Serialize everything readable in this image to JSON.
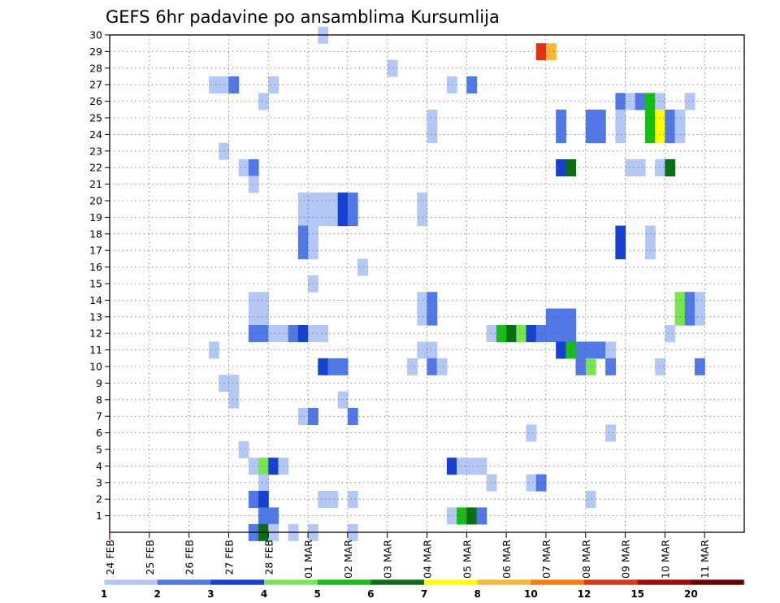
{
  "chart_data": {
    "type": "heatmap",
    "title": "GEFS 6hr padavine po ansamblima Kursumlija",
    "xlabel": "",
    "ylabel": "",
    "x_tick_labels": [
      "24 FEB",
      "25 FEB",
      "26 FEB",
      "27 FEB",
      "28 FEB",
      "01 MAR",
      "02 MAR",
      "03 MAR",
      "04 MAR",
      "05 MAR",
      "06 MAR",
      "07 MAR",
      "08 MAR",
      "09 MAR",
      "10 MAR",
      "11 MAR"
    ],
    "y_tick_labels": [
      "1",
      "2",
      "3",
      "4",
      "5",
      "6",
      "7",
      "8",
      "9",
      "10",
      "11",
      "12",
      "13",
      "14",
      "15",
      "16",
      "17",
      "18",
      "19",
      "20",
      "21",
      "22",
      "23",
      "24",
      "25",
      "26",
      "27",
      "28",
      "29",
      "30"
    ],
    "x_range_days": [
      0,
      16
    ],
    "y_range": [
      0,
      30
    ],
    "time_step_hours": 6,
    "grid": "dotted",
    "colorbar": {
      "labels": [
        "1",
        "2",
        "3",
        "4",
        "5",
        "6",
        "7",
        "8",
        "10",
        "12",
        "15",
        "20"
      ],
      "colors": [
        "#b4c8f5",
        "#5078e6",
        "#1441d2",
        "#78e650",
        "#14be14",
        "#0a6e14",
        "#ffff00",
        "#ffb432",
        "#ff780a",
        "#e13214",
        "#a00a0a",
        "#690000"
      ]
    },
    "cells": [
      {
        "member": 30,
        "day": "01 MAR",
        "hour": "06Z",
        "level": 1
      },
      {
        "member": 29,
        "day": "06 MAR",
        "hour": "18Z",
        "level": 10
      },
      {
        "member": 29,
        "day": "07 MAR",
        "hour": "00Z",
        "level": 8
      },
      {
        "member": 28,
        "day": "03 MAR",
        "hour": "00Z",
        "level": 1
      },
      {
        "member": 27,
        "day": "26 FEB",
        "hour": "12Z",
        "level": 1
      },
      {
        "member": 27,
        "day": "26 FEB",
        "hour": "18Z",
        "level": 1
      },
      {
        "member": 27,
        "day": "27 FEB",
        "hour": "00Z",
        "level": 2
      },
      {
        "member": 27,
        "day": "28 FEB",
        "hour": "00Z",
        "level": 1
      },
      {
        "member": 27,
        "day": "04 MAR",
        "hour": "12Z",
        "level": 1
      },
      {
        "member": 27,
        "day": "05 MAR",
        "hour": "00Z",
        "level": 2
      },
      {
        "member": 26,
        "day": "27 FEB",
        "hour": "18Z",
        "level": 1
      },
      {
        "member": 26,
        "day": "08 MAR",
        "hour": "18Z",
        "level": 2
      },
      {
        "member": 26,
        "day": "09 MAR",
        "hour": "00Z",
        "level": 1
      },
      {
        "member": 26,
        "day": "09 MAR",
        "hour": "06Z",
        "level": 2
      },
      {
        "member": 26,
        "day": "09 MAR",
        "hour": "12Z",
        "level": 5
      },
      {
        "member": 26,
        "day": "09 MAR",
        "hour": "18Z",
        "level": 1
      },
      {
        "member": 26,
        "day": "10 MAR",
        "hour": "12Z",
        "level": 1
      },
      {
        "member": 25,
        "day": "04 MAR",
        "hour": "00Z",
        "level": 1
      },
      {
        "member": 25,
        "day": "07 MAR",
        "hour": "06Z",
        "level": 2
      },
      {
        "member": 25,
        "day": "08 MAR",
        "hour": "00Z",
        "level": 2
      },
      {
        "member": 25,
        "day": "08 MAR",
        "hour": "06Z",
        "level": 2
      },
      {
        "member": 25,
        "day": "08 MAR",
        "hour": "18Z",
        "level": 1
      },
      {
        "member": 25,
        "day": "09 MAR",
        "hour": "12Z",
        "level": 5
      },
      {
        "member": 25,
        "day": "09 MAR",
        "hour": "18Z",
        "level": 7
      },
      {
        "member": 25,
        "day": "10 MAR",
        "hour": "00Z",
        "level": 2
      },
      {
        "member": 25,
        "day": "10 MAR",
        "hour": "06Z",
        "level": 1
      },
      {
        "member": 24,
        "day": "04 MAR",
        "hour": "00Z",
        "level": 1
      },
      {
        "member": 24,
        "day": "07 MAR",
        "hour": "06Z",
        "level": 2
      },
      {
        "member": 24,
        "day": "08 MAR",
        "hour": "00Z",
        "level": 2
      },
      {
        "member": 24,
        "day": "08 MAR",
        "hour": "06Z",
        "level": 2
      },
      {
        "member": 24,
        "day": "08 MAR",
        "hour": "18Z",
        "level": 1
      },
      {
        "member": 24,
        "day": "09 MAR",
        "hour": "12Z",
        "level": 5
      },
      {
        "member": 24,
        "day": "09 MAR",
        "hour": "18Z",
        "level": 7
      },
      {
        "member": 24,
        "day": "10 MAR",
        "hour": "00Z",
        "level": 2
      },
      {
        "member": 24,
        "day": "10 MAR",
        "hour": "06Z",
        "level": 1
      },
      {
        "member": 23,
        "day": "26 FEB",
        "hour": "18Z",
        "level": 1
      },
      {
        "member": 22,
        "day": "27 FEB",
        "hour": "06Z",
        "level": 1
      },
      {
        "member": 22,
        "day": "27 FEB",
        "hour": "12Z",
        "level": 2
      },
      {
        "member": 22,
        "day": "07 MAR",
        "hour": "06Z",
        "level": 3
      },
      {
        "member": 22,
        "day": "07 MAR",
        "hour": "12Z",
        "level": 6
      },
      {
        "member": 22,
        "day": "09 MAR",
        "hour": "00Z",
        "level": 1
      },
      {
        "member": 22,
        "day": "09 MAR",
        "hour": "06Z",
        "level": 1
      },
      {
        "member": 22,
        "day": "09 MAR",
        "hour": "18Z",
        "level": 1
      },
      {
        "member": 22,
        "day": "10 MAR",
        "hour": "00Z",
        "level": 6
      },
      {
        "member": 21,
        "day": "27 FEB",
        "hour": "12Z",
        "level": 1
      },
      {
        "member": 20,
        "day": "28 FEB",
        "hour": "18Z",
        "level": 1
      },
      {
        "member": 20,
        "day": "01 MAR",
        "hour": "00Z",
        "level": 1
      },
      {
        "member": 20,
        "day": "01 MAR",
        "hour": "06Z",
        "level": 1
      },
      {
        "member": 20,
        "day": "01 MAR",
        "hour": "12Z",
        "level": 1
      },
      {
        "member": 20,
        "day": "01 MAR",
        "hour": "18Z",
        "level": 3
      },
      {
        "member": 20,
        "day": "02 MAR",
        "hour": "00Z",
        "level": 2
      },
      {
        "member": 20,
        "day": "03 MAR",
        "hour": "18Z",
        "level": 1
      },
      {
        "member": 19,
        "day": "28 FEB",
        "hour": "18Z",
        "level": 1
      },
      {
        "member": 19,
        "day": "01 MAR",
        "hour": "00Z",
        "level": 1
      },
      {
        "member": 19,
        "day": "01 MAR",
        "hour": "06Z",
        "level": 1
      },
      {
        "member": 19,
        "day": "01 MAR",
        "hour": "12Z",
        "level": 1
      },
      {
        "member": 19,
        "day": "01 MAR",
        "hour": "18Z",
        "level": 3
      },
      {
        "member": 19,
        "day": "02 MAR",
        "hour": "00Z",
        "level": 2
      },
      {
        "member": 19,
        "day": "03 MAR",
        "hour": "18Z",
        "level": 1
      },
      {
        "member": 18,
        "day": "28 FEB",
        "hour": "18Z",
        "level": 2
      },
      {
        "member": 18,
        "day": "01 MAR",
        "hour": "00Z",
        "level": 1
      },
      {
        "member": 18,
        "day": "08 MAR",
        "hour": "18Z",
        "level": 3
      },
      {
        "member": 18,
        "day": "09 MAR",
        "hour": "12Z",
        "level": 1
      },
      {
        "member": 17,
        "day": "28 FEB",
        "hour": "18Z",
        "level": 2
      },
      {
        "member": 17,
        "day": "01 MAR",
        "hour": "00Z",
        "level": 1
      },
      {
        "member": 17,
        "day": "08 MAR",
        "hour": "18Z",
        "level": 3
      },
      {
        "member": 17,
        "day": "09 MAR",
        "hour": "12Z",
        "level": 1
      },
      {
        "member": 16,
        "day": "02 MAR",
        "hour": "06Z",
        "level": 1
      },
      {
        "member": 15,
        "day": "01 MAR",
        "hour": "00Z",
        "level": 1
      },
      {
        "member": 14,
        "day": "27 FEB",
        "hour": "12Z",
        "level": 1
      },
      {
        "member": 14,
        "day": "27 FEB",
        "hour": "18Z",
        "level": 1
      },
      {
        "member": 14,
        "day": "03 MAR",
        "hour": "18Z",
        "level": 1
      },
      {
        "member": 14,
        "day": "04 MAR",
        "hour": "00Z",
        "level": 2
      },
      {
        "member": 14,
        "day": "10 MAR",
        "hour": "06Z",
        "level": 4
      },
      {
        "member": 14,
        "day": "10 MAR",
        "hour": "12Z",
        "level": 2
      },
      {
        "member": 14,
        "day": "10 MAR",
        "hour": "18Z",
        "level": 1
      },
      {
        "member": 13,
        "day": "27 FEB",
        "hour": "12Z",
        "level": 1
      },
      {
        "member": 13,
        "day": "27 FEB",
        "hour": "18Z",
        "level": 1
      },
      {
        "member": 13,
        "day": "03 MAR",
        "hour": "18Z",
        "level": 1
      },
      {
        "member": 13,
        "day": "04 MAR",
        "hour": "00Z",
        "level": 2
      },
      {
        "member": 13,
        "day": "07 MAR",
        "hour": "00Z",
        "level": 2
      },
      {
        "member": 13,
        "day": "07 MAR",
        "hour": "06Z",
        "level": 2
      },
      {
        "member": 13,
        "day": "07 MAR",
        "hour": "12Z",
        "level": 2
      },
      {
        "member": 13,
        "day": "10 MAR",
        "hour": "06Z",
        "level": 4
      },
      {
        "member": 13,
        "day": "10 MAR",
        "hour": "12Z",
        "level": 2
      },
      {
        "member": 13,
        "day": "10 MAR",
        "hour": "18Z",
        "level": 1
      },
      {
        "member": 12,
        "day": "27 FEB",
        "hour": "12Z",
        "level": 2
      },
      {
        "member": 12,
        "day": "27 FEB",
        "hour": "18Z",
        "level": 2
      },
      {
        "member": 12,
        "day": "28 FEB",
        "hour": "00Z",
        "level": 1
      },
      {
        "member": 12,
        "day": "28 FEB",
        "hour": "06Z",
        "level": 1
      },
      {
        "member": 12,
        "day": "28 FEB",
        "hour": "12Z",
        "level": 2
      },
      {
        "member": 12,
        "day": "28 FEB",
        "hour": "18Z",
        "level": 3
      },
      {
        "member": 12,
        "day": "01 MAR",
        "hour": "00Z",
        "level": 1
      },
      {
        "member": 12,
        "day": "01 MAR",
        "hour": "06Z",
        "level": 1
      },
      {
        "member": 12,
        "day": "05 MAR",
        "hour": "12Z",
        "level": 1
      },
      {
        "member": 12,
        "day": "05 MAR",
        "hour": "18Z",
        "level": 5
      },
      {
        "member": 12,
        "day": "06 MAR",
        "hour": "00Z",
        "level": 6
      },
      {
        "member": 12,
        "day": "06 MAR",
        "hour": "06Z",
        "level": 4
      },
      {
        "member": 12,
        "day": "06 MAR",
        "hour": "12Z",
        "level": 3
      },
      {
        "member": 12,
        "day": "06 MAR",
        "hour": "18Z",
        "level": 2
      },
      {
        "member": 12,
        "day": "07 MAR",
        "hour": "00Z",
        "level": 2
      },
      {
        "member": 12,
        "day": "07 MAR",
        "hour": "06Z",
        "level": 2
      },
      {
        "member": 12,
        "day": "07 MAR",
        "hour": "12Z",
        "level": 2
      },
      {
        "member": 12,
        "day": "10 MAR",
        "hour": "00Z",
        "level": 1
      },
      {
        "member": 11,
        "day": "26 FEB",
        "hour": "12Z",
        "level": 1
      },
      {
        "member": 11,
        "day": "03 MAR",
        "hour": "18Z",
        "level": 1
      },
      {
        "member": 11,
        "day": "04 MAR",
        "hour": "00Z",
        "level": 1
      },
      {
        "member": 11,
        "day": "07 MAR",
        "hour": "06Z",
        "level": 3
      },
      {
        "member": 11,
        "day": "07 MAR",
        "hour": "12Z",
        "level": 5
      },
      {
        "member": 11,
        "day": "07 MAR",
        "hour": "18Z",
        "level": 2
      },
      {
        "member": 11,
        "day": "08 MAR",
        "hour": "00Z",
        "level": 2
      },
      {
        "member": 11,
        "day": "08 MAR",
        "hour": "06Z",
        "level": 2
      },
      {
        "member": 11,
        "day": "08 MAR",
        "hour": "12Z",
        "level": 1
      },
      {
        "member": 10,
        "day": "01 MAR",
        "hour": "06Z",
        "level": 3
      },
      {
        "member": 10,
        "day": "01 MAR",
        "hour": "12Z",
        "level": 2
      },
      {
        "member": 10,
        "day": "01 MAR",
        "hour": "18Z",
        "level": 2
      },
      {
        "member": 10,
        "day": "03 MAR",
        "hour": "12Z",
        "level": 1
      },
      {
        "member": 10,
        "day": "04 MAR",
        "hour": "00Z",
        "level": 2
      },
      {
        "member": 10,
        "day": "04 MAR",
        "hour": "06Z",
        "level": 1
      },
      {
        "member": 10,
        "day": "07 MAR",
        "hour": "18Z",
        "level": 2
      },
      {
        "member": 10,
        "day": "08 MAR",
        "hour": "00Z",
        "level": 4
      },
      {
        "member": 10,
        "day": "08 MAR",
        "hour": "12Z",
        "level": 2
      },
      {
        "member": 10,
        "day": "09 MAR",
        "hour": "18Z",
        "level": 1
      },
      {
        "member": 10,
        "day": "10 MAR",
        "hour": "18Z",
        "level": 2
      },
      {
        "member": 9,
        "day": "26 FEB",
        "hour": "18Z",
        "level": 1
      },
      {
        "member": 9,
        "day": "27 FEB",
        "hour": "00Z",
        "level": 1
      },
      {
        "member": 8,
        "day": "27 FEB",
        "hour": "00Z",
        "level": 1
      },
      {
        "member": 8,
        "day": "01 MAR",
        "hour": "18Z",
        "level": 1
      },
      {
        "member": 7,
        "day": "28 FEB",
        "hour": "18Z",
        "level": 1
      },
      {
        "member": 7,
        "day": "01 MAR",
        "hour": "00Z",
        "level": 2
      },
      {
        "member": 7,
        "day": "02 MAR",
        "hour": "00Z",
        "level": 2
      },
      {
        "member": 6,
        "day": "06 MAR",
        "hour": "12Z",
        "level": 1
      },
      {
        "member": 6,
        "day": "08 MAR",
        "hour": "12Z",
        "level": 1
      },
      {
        "member": 5,
        "day": "27 FEB",
        "hour": "06Z",
        "level": 1
      },
      {
        "member": 4,
        "day": "27 FEB",
        "hour": "12Z",
        "level": 1
      },
      {
        "member": 4,
        "day": "27 FEB",
        "hour": "18Z",
        "level": 4
      },
      {
        "member": 4,
        "day": "28 FEB",
        "hour": "00Z",
        "level": 3
      },
      {
        "member": 4,
        "day": "28 FEB",
        "hour": "06Z",
        "level": 1
      },
      {
        "member": 4,
        "day": "04 MAR",
        "hour": "12Z",
        "level": 3
      },
      {
        "member": 4,
        "day": "04 MAR",
        "hour": "18Z",
        "level": 1
      },
      {
        "member": 4,
        "day": "05 MAR",
        "hour": "00Z",
        "level": 1
      },
      {
        "member": 4,
        "day": "05 MAR",
        "hour": "06Z",
        "level": 1
      },
      {
        "member": 3,
        "day": "27 FEB",
        "hour": "18Z",
        "level": 1
      },
      {
        "member": 3,
        "day": "05 MAR",
        "hour": "12Z",
        "level": 1
      },
      {
        "member": 3,
        "day": "06 MAR",
        "hour": "12Z",
        "level": 1
      },
      {
        "member": 3,
        "day": "06 MAR",
        "hour": "18Z",
        "level": 2
      },
      {
        "member": 2,
        "day": "27 FEB",
        "hour": "12Z",
        "level": 2
      },
      {
        "member": 2,
        "day": "27 FEB",
        "hour": "18Z",
        "level": 3
      },
      {
        "member": 2,
        "day": "01 MAR",
        "hour": "06Z",
        "level": 1
      },
      {
        "member": 2,
        "day": "01 MAR",
        "hour": "12Z",
        "level": 1
      },
      {
        "member": 2,
        "day": "02 MAR",
        "hour": "00Z",
        "level": 1
      },
      {
        "member": 2,
        "day": "08 MAR",
        "hour": "00Z",
        "level": 1
      },
      {
        "member": 1,
        "day": "27 FEB",
        "hour": "18Z",
        "level": 2
      },
      {
        "member": 1,
        "day": "28 FEB",
        "hour": "00Z",
        "level": 2
      },
      {
        "member": 1,
        "day": "04 MAR",
        "hour": "12Z",
        "level": 1
      },
      {
        "member": 1,
        "day": "04 MAR",
        "hour": "18Z",
        "level": 5
      },
      {
        "member": 1,
        "day": "05 MAR",
        "hour": "00Z",
        "level": 6
      },
      {
        "member": 1,
        "day": "05 MAR",
        "hour": "06Z",
        "level": 2
      },
      {
        "member": 0,
        "day": "27 FEB",
        "hour": "12Z",
        "level": 2
      },
      {
        "member": 0,
        "day": "27 FEB",
        "hour": "18Z",
        "level": 6
      },
      {
        "member": 0,
        "day": "28 FEB",
        "hour": "00Z",
        "level": 1
      },
      {
        "member": 0,
        "day": "28 FEB",
        "hour": "12Z",
        "level": 1
      },
      {
        "member": 0,
        "day": "01 MAR",
        "hour": "00Z",
        "level": 1
      },
      {
        "member": 0,
        "day": "02 MAR",
        "hour": "00Z",
        "level": 1
      }
    ]
  }
}
